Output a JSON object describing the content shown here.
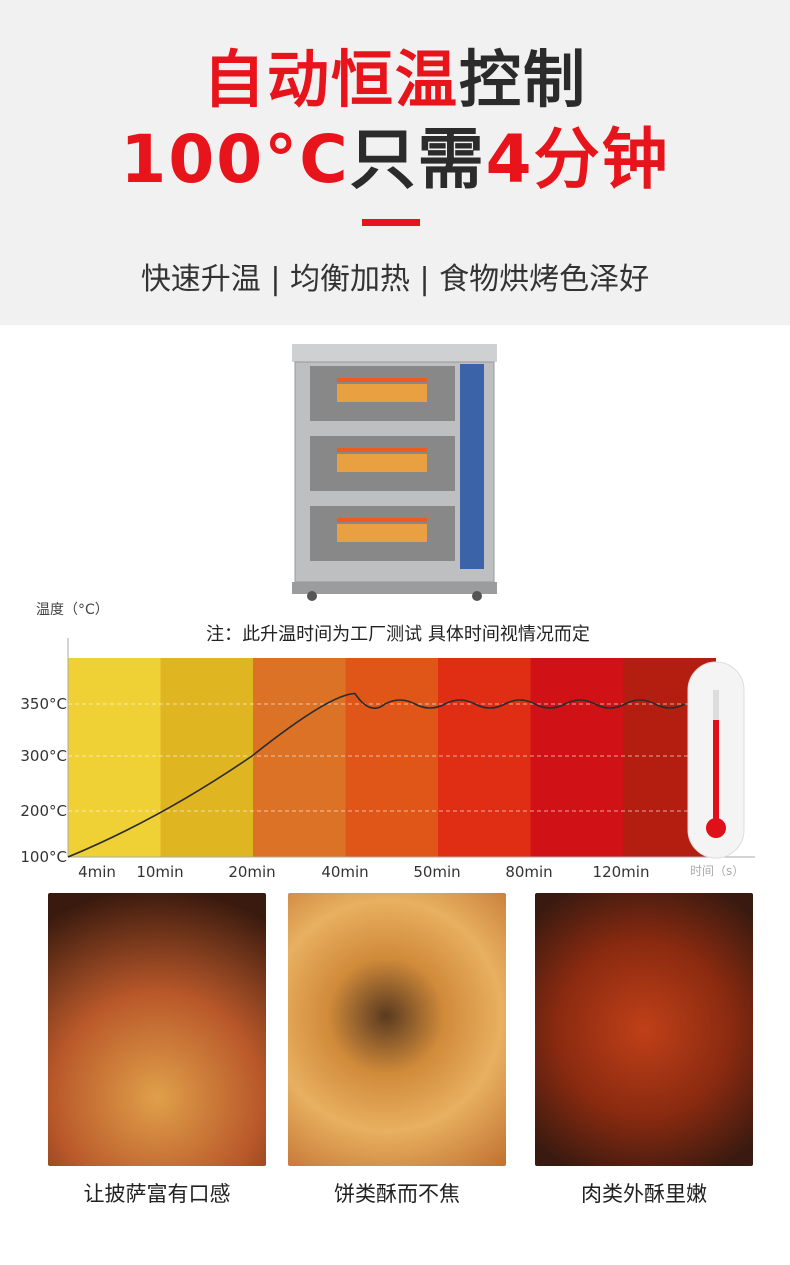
{
  "headline": {
    "line1_red": "自动恒温",
    "line1_dark": "控制",
    "line2_red_a": "100°C",
    "line2_dark": "只需",
    "line2_red_b": "4分钟"
  },
  "subtitle": "快速升温 | 均衡加热 | 食物烘烤色泽好",
  "colors": {
    "accent": "#e8141b",
    "bands": [
      "#EFD035",
      "#DFB522",
      "#DC7226",
      "#E05518",
      "#DF2E14",
      "#D01216",
      "#B41E10"
    ]
  },
  "chart_data": {
    "type": "line",
    "ylabel": "温度（°C）",
    "xlabel": "时间（s）",
    "note": "注：此升温时间为工厂测试  具体时间视情况而定",
    "x_ticks": [
      "4min",
      "10min",
      "20min",
      "40min",
      "50min",
      "80min",
      "120min"
    ],
    "y_ticks": [
      "100°C",
      "200°C",
      "300°C",
      "350°C"
    ],
    "y_values": [
      100,
      200,
      300,
      350
    ],
    "series": [
      {
        "x": [
          "4min",
          "10min",
          "20min",
          "40min",
          "50min",
          "80min",
          "120min"
        ],
        "y": [
          100,
          200,
          300,
          355,
          350,
          350,
          350
        ]
      }
    ],
    "grid": true
  },
  "foods": [
    {
      "caption": "让披萨富有口感",
      "icon": "pizza-photo"
    },
    {
      "caption": "饼类酥而不焦",
      "icon": "pastry-photo"
    },
    {
      "caption": "肉类外酥里嫩",
      "icon": "chicken-wings-photo"
    }
  ]
}
